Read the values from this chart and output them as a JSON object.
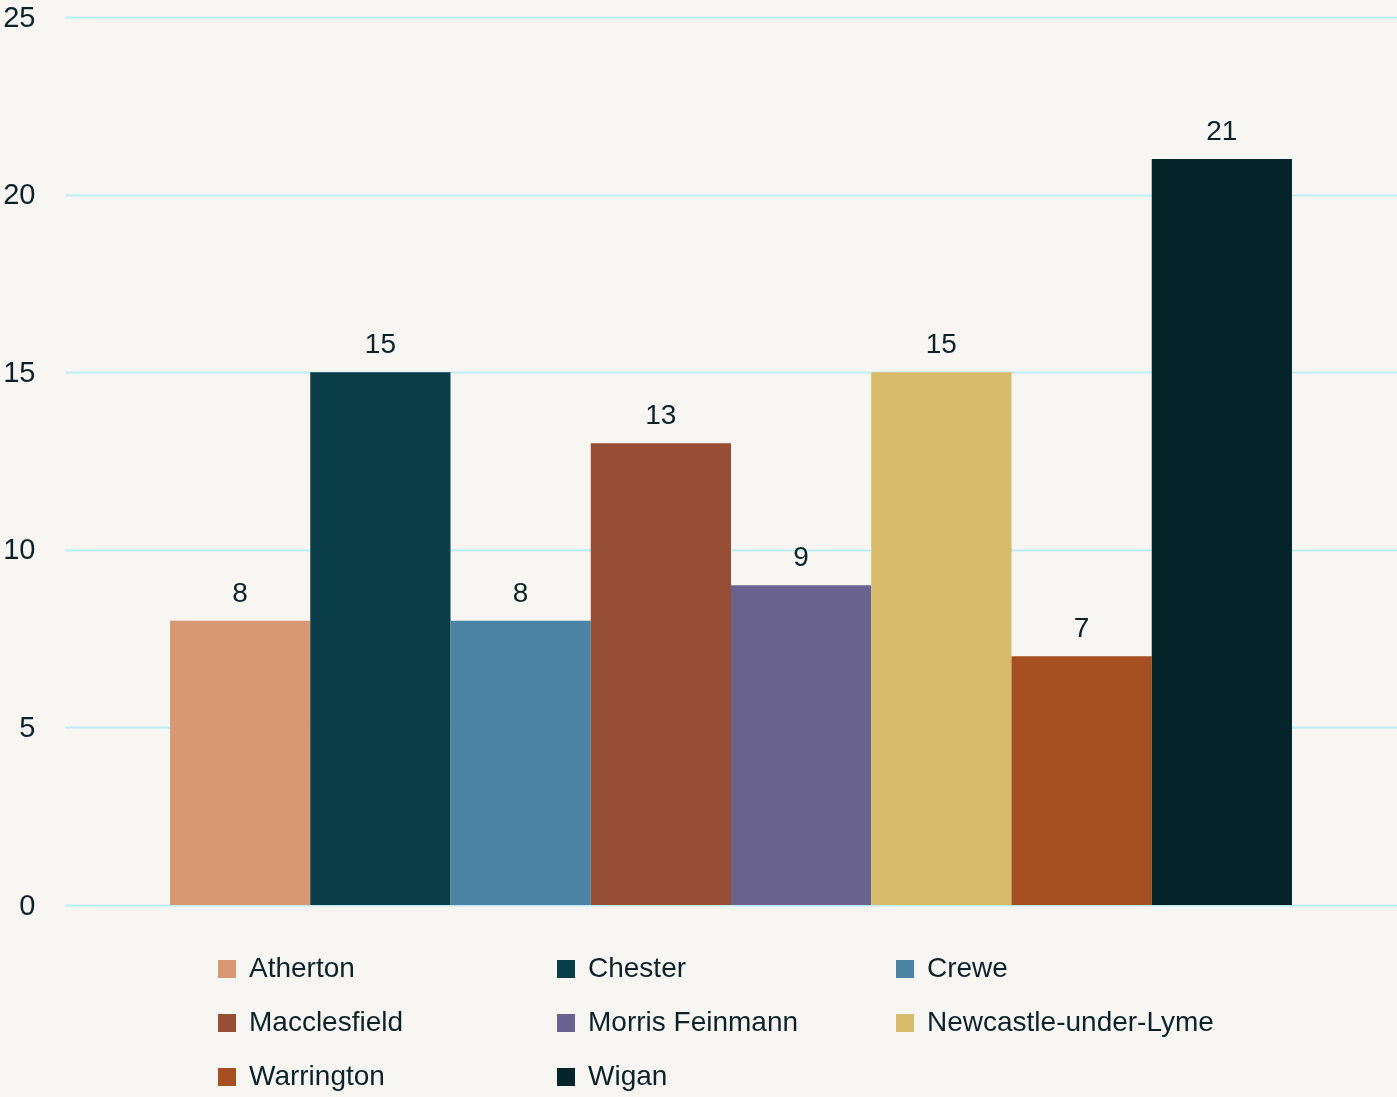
{
  "chart_data": {
    "type": "bar",
    "categories": [
      null
    ],
    "series": [
      {
        "name": "Atherton",
        "color": "#d99874",
        "values": [
          8
        ]
      },
      {
        "name": "Chester",
        "color": "#093d48",
        "values": [
          15
        ]
      },
      {
        "name": "Crewe",
        "color": "#4a83a3",
        "values": [
          8
        ]
      },
      {
        "name": "Macclesfield",
        "color": "#964f35",
        "values": [
          13
        ]
      },
      {
        "name": "Morris Feinmann",
        "color": "#6a6390",
        "values": [
          9
        ]
      },
      {
        "name": "Newcastle-under-Lyme",
        "color": "#d7ba6a",
        "values": [
          15
        ]
      },
      {
        "name": "Warrington",
        "color": "#a65022",
        "values": [
          7
        ]
      },
      {
        "name": "Wigan",
        "color": "#05252b",
        "values": [
          21
        ]
      }
    ],
    "ylim": [
      0,
      25
    ],
    "yticks": [
      0,
      5,
      10,
      15,
      20,
      25
    ],
    "grid": "y",
    "legend": "bottom",
    "tick_labels": "y",
    "data_labels": true
  }
}
